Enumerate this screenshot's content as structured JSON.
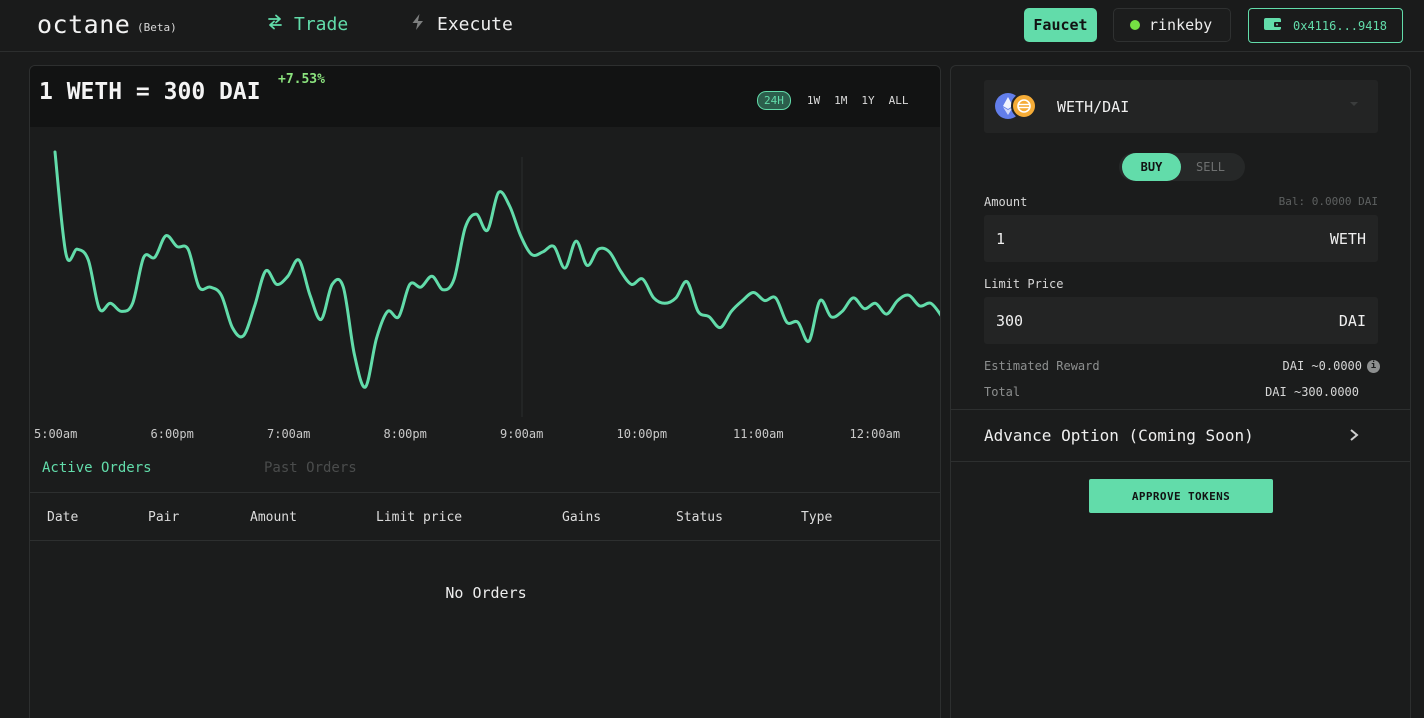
{
  "header": {
    "logo": "octane",
    "beta": "(Beta)",
    "nav": {
      "trade": "Trade",
      "execute": "Execute"
    },
    "faucet_label": "Faucet",
    "network_label": "rinkeby",
    "wallet_address": "0x4116...9418",
    "accent_color": "#62dcaa"
  },
  "chart": {
    "pair_price": "1 WETH = 300 DAI",
    "change": "+7.53%",
    "ranges": [
      "24H",
      "1W",
      "1M",
      "1Y",
      "ALL"
    ],
    "active_range": "24H"
  },
  "chart_data": {
    "type": "line",
    "title": "1 WETH = 300 DAI",
    "xlabel": "",
    "ylabel": "",
    "x_ticks": [
      "5:00am",
      "6:00pm",
      "7:00am",
      "8:00pm",
      "9:00am",
      "10:00pm",
      "11:00am",
      "12:00am"
    ],
    "grid": false,
    "series": [
      {
        "color": "#62dcaa",
        "values": [
          94,
          56,
          58,
          54,
          36,
          38,
          35,
          38,
          55,
          55,
          63,
          59,
          58,
          44,
          44,
          41,
          29,
          26,
          37,
          50,
          45,
          48,
          54,
          41,
          32,
          45,
          44,
          19,
          7,
          25,
          35,
          33,
          45,
          44,
          48,
          43,
          47,
          66,
          71,
          65,
          79,
          74,
          63,
          56,
          57,
          59,
          51,
          61,
          52,
          58,
          57,
          50,
          45,
          47,
          40,
          38,
          40,
          46,
          35,
          33,
          29,
          35,
          39,
          42,
          39,
          40,
          31,
          31,
          24,
          39,
          33,
          35,
          40,
          36,
          38,
          34,
          39,
          41,
          37,
          38,
          33
        ]
      }
    ]
  },
  "orders": {
    "tabs": {
      "active": "Active Orders",
      "past": "Past Orders"
    },
    "columns": [
      "Date",
      "Pair",
      "Amount",
      "Limit price",
      "Gains",
      "Status",
      "Type"
    ],
    "empty_text": "No Orders"
  },
  "order_form": {
    "pair": "WETH/DAI",
    "buy_label": "BUY",
    "sell_label": "SELL",
    "amount_label": "Amount",
    "balance": "Bal: 0.0000 DAI",
    "amount_value": "1",
    "amount_unit": "WETH",
    "limit_label": "Limit Price",
    "limit_value": "300",
    "limit_unit": "DAI",
    "est_reward_label": "Estimated Reward",
    "est_reward_value": "DAI ~0.0000",
    "total_label": "Total",
    "total_value": "DAI ~300.0000",
    "advance_label": "Advance Option (Coming Soon)",
    "approve_label": "APPROVE TOKENS"
  }
}
